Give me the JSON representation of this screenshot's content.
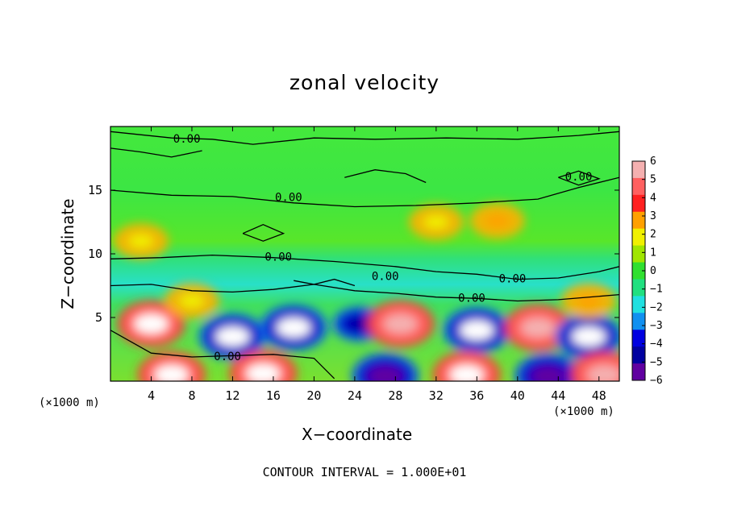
{
  "chart_data": {
    "type": "heatmap",
    "title": "zonal velocity",
    "xlabel": "X−coordinate",
    "ylabel": "Z−coordinate",
    "x_unit_label": "(×1000 m)",
    "xlim": [
      0,
      50
    ],
    "ylim": [
      0,
      20
    ],
    "x_ticks": [
      4,
      8,
      12,
      16,
      20,
      24,
      28,
      32,
      36,
      40,
      44,
      48
    ],
    "y_ticks": [
      5,
      10,
      15
    ],
    "footnote": "CONTOUR INTERVAL = 1.000E+01",
    "contour_labels": [
      {
        "text": "0.00",
        "x": 7.5,
        "z": 19.0
      },
      {
        "text": "0.00",
        "x": 46.0,
        "z": 16.0
      },
      {
        "text": "0.00",
        "x": 17.5,
        "z": 14.4
      },
      {
        "text": "0.00",
        "x": 16.5,
        "z": 9.7
      },
      {
        "text": "0.00",
        "x": 27.0,
        "z": 8.2
      },
      {
        "text": "0.00",
        "x": 39.5,
        "z": 8.0
      },
      {
        "text": "0.00",
        "x": 35.5,
        "z": 6.5
      },
      {
        "text": "0.00",
        "x": 11.5,
        "z": 1.9
      }
    ],
    "colorbar": {
      "ticks": [
        "6",
        "5",
        "4",
        "3",
        "2",
        "1",
        "0",
        "−1",
        "−2",
        "−3",
        "−4",
        "−5",
        "−6"
      ],
      "range": [
        -6,
        6
      ],
      "colors": [
        "#f4b0b0",
        "#ff6060",
        "#ff2020",
        "#ffa000",
        "#f0f000",
        "#a0e600",
        "#30e030",
        "#20e080",
        "#20e0e0",
        "#1090f0",
        "#0000e0",
        "#0000a0",
        "#6000a0"
      ]
    },
    "features": [
      {
        "x": 4,
        "z": 4.5,
        "value": 7
      },
      {
        "x": 12,
        "z": 3.5,
        "value": -7
      },
      {
        "x": 18,
        "z": 4.2,
        "value": -7
      },
      {
        "x": 24.5,
        "z": 4.5,
        "value": -5
      },
      {
        "x": 28.5,
        "z": 4.5,
        "value": 6
      },
      {
        "x": 36,
        "z": 4.0,
        "value": -7
      },
      {
        "x": 42,
        "z": 4.2,
        "value": 6
      },
      {
        "x": 47,
        "z": 3.5,
        "value": -7
      },
      {
        "x": 6,
        "z": 0.5,
        "value": 7
      },
      {
        "x": 15,
        "z": 0.6,
        "value": 7
      },
      {
        "x": 27,
        "z": 0.4,
        "value": -6
      },
      {
        "x": 35,
        "z": 0.5,
        "value": 7
      },
      {
        "x": 43,
        "z": 0.4,
        "value": -6
      },
      {
        "x": 48.5,
        "z": 0.5,
        "value": 6
      },
      {
        "x": 32,
        "z": 12.5,
        "value": 2
      },
      {
        "x": 38,
        "z": 12.6,
        "value": 3
      },
      {
        "x": 3,
        "z": 11.0,
        "value": 2
      },
      {
        "x": 8,
        "z": 6.3,
        "value": 2
      },
      {
        "x": 47,
        "z": 6.3,
        "value": 3
      }
    ]
  }
}
